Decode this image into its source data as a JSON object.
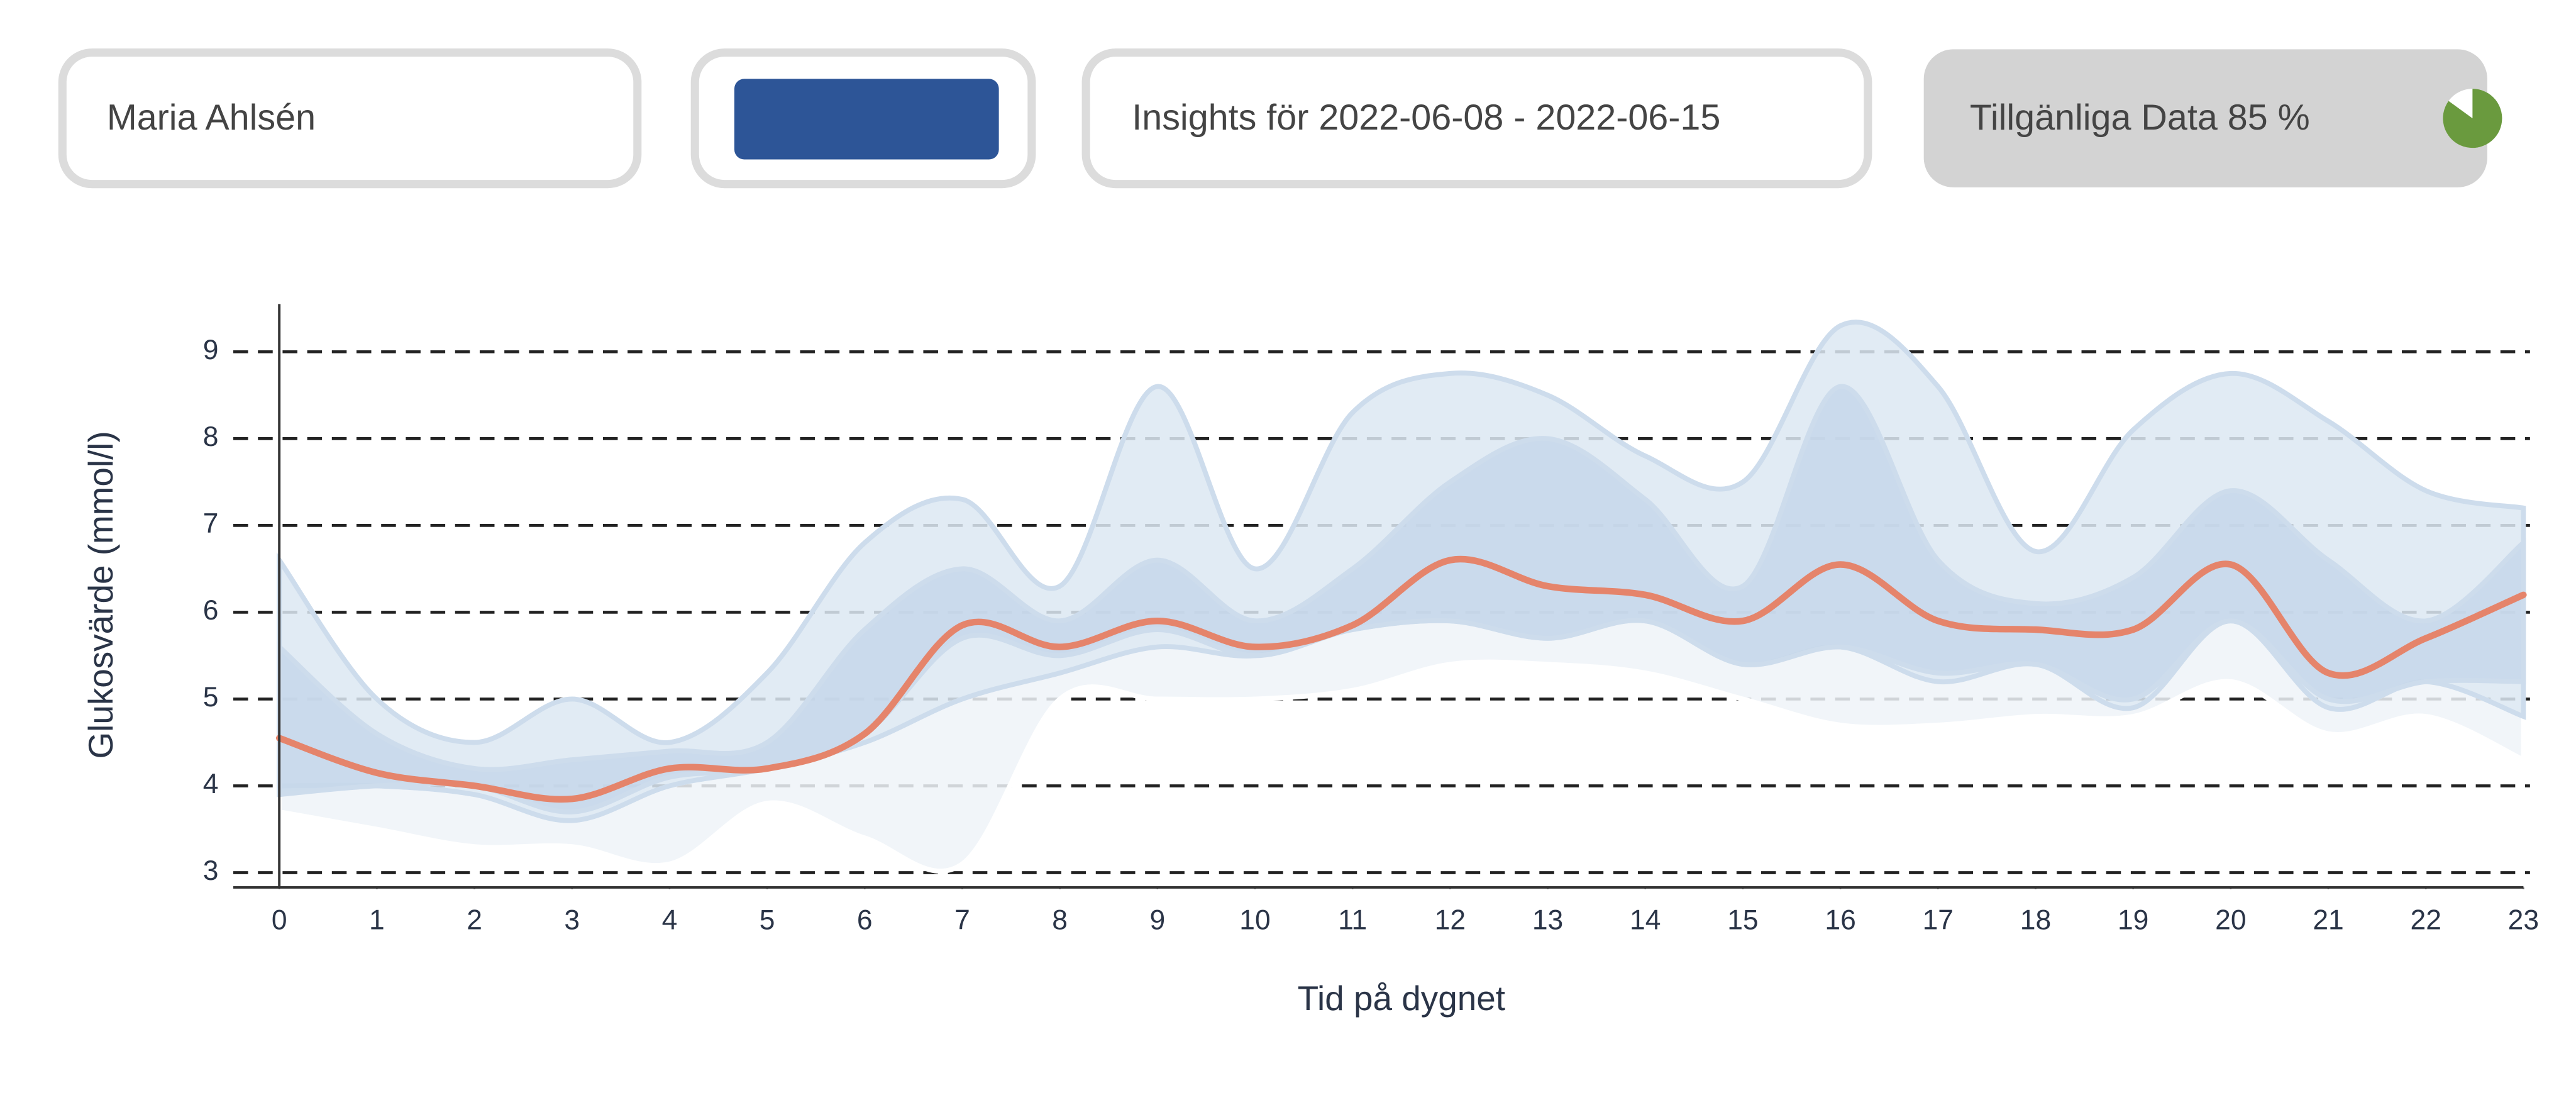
{
  "header": {
    "patient": "Maria Ahlsén",
    "insights": "Insights för 2022-06-08 - 2022-06-15",
    "availability": {
      "label": "Tillgänliga Data",
      "value": 85,
      "value_label": "85 %",
      "color": "#6a9a3e"
    }
  },
  "chart_data": {
    "type": "line",
    "x_label": "Tid på dygnet",
    "y_label": "Glukosvärde (mmol/l)",
    "x": [
      0,
      1,
      2,
      3,
      4,
      5,
      6,
      7,
      8,
      9,
      10,
      11,
      12,
      13,
      14,
      15,
      16,
      17,
      18,
      19,
      20,
      21,
      22,
      23
    ],
    "xlim": [
      0,
      23
    ],
    "xticks": [
      0,
      1,
      2,
      3,
      4,
      5,
      6,
      7,
      8,
      9,
      10,
      11,
      12,
      13,
      14,
      15,
      16,
      17,
      18,
      19,
      20,
      21,
      22,
      23
    ],
    "ylim": [
      2.83,
      9.55
    ],
    "yticks": [
      3,
      4,
      5,
      6,
      7,
      8,
      9
    ],
    "grid": true,
    "bands": [
      {
        "color": "#eef3f8",
        "low": [
          3.7,
          3.5,
          3.3,
          3.3,
          3.1,
          3.8,
          3.4,
          3.1,
          5.0,
          5.0,
          5.0,
          5.1,
          5.4,
          5.4,
          5.3,
          5.0,
          4.7,
          4.7,
          4.8,
          4.8,
          5.2,
          4.6,
          4.8,
          4.3
        ],
        "high": [
          4.0,
          4.0,
          3.9,
          3.6,
          4.0,
          4.2,
          4.5,
          5.0,
          5.3,
          5.6,
          5.5,
          5.8,
          5.9,
          5.7,
          5.9,
          5.4,
          5.6,
          5.2,
          5.4,
          4.9,
          5.9,
          4.9,
          5.2,
          4.8
        ]
      },
      {
        "color": "#dce7f2",
        "low": [
          4.0,
          4.0,
          3.9,
          3.6,
          4.0,
          4.2,
          4.5,
          5.0,
          5.3,
          5.6,
          5.5,
          5.8,
          5.9,
          5.7,
          5.9,
          5.4,
          5.6,
          5.2,
          5.4,
          4.9,
          5.9,
          4.9,
          5.2,
          4.8
        ],
        "high": [
          6.6,
          5.0,
          4.5,
          5.0,
          4.5,
          5.3,
          6.8,
          7.3,
          6.3,
          8.6,
          6.5,
          8.3,
          8.75,
          8.5,
          7.8,
          7.5,
          9.3,
          8.6,
          6.7,
          8.1,
          8.75,
          8.2,
          7.4,
          7.2
        ]
      },
      {
        "color": "#c6d7ea",
        "low": [
          3.9,
          4.0,
          4.0,
          3.7,
          4.1,
          4.2,
          4.6,
          5.7,
          5.5,
          5.8,
          5.5,
          5.8,
          5.9,
          5.7,
          5.9,
          5.4,
          5.6,
          5.3,
          5.4,
          5.0,
          5.9,
          5.0,
          5.2,
          5.2
        ],
        "high": [
          5.6,
          4.6,
          4.2,
          4.3,
          4.4,
          4.5,
          5.8,
          6.5,
          5.9,
          6.6,
          5.9,
          6.5,
          7.5,
          8.0,
          7.3,
          6.3,
          8.6,
          6.6,
          6.1,
          6.4,
          7.4,
          6.6,
          5.9,
          6.8
        ]
      }
    ],
    "series": [
      {
        "color": "#e5846b",
        "values": [
          4.55,
          4.15,
          4.0,
          3.85,
          4.2,
          4.2,
          4.6,
          5.85,
          5.6,
          5.9,
          5.6,
          5.85,
          6.6,
          6.3,
          6.2,
          5.9,
          6.55,
          5.9,
          5.8,
          5.8,
          6.55,
          5.3,
          5.7,
          6.2
        ]
      }
    ]
  }
}
